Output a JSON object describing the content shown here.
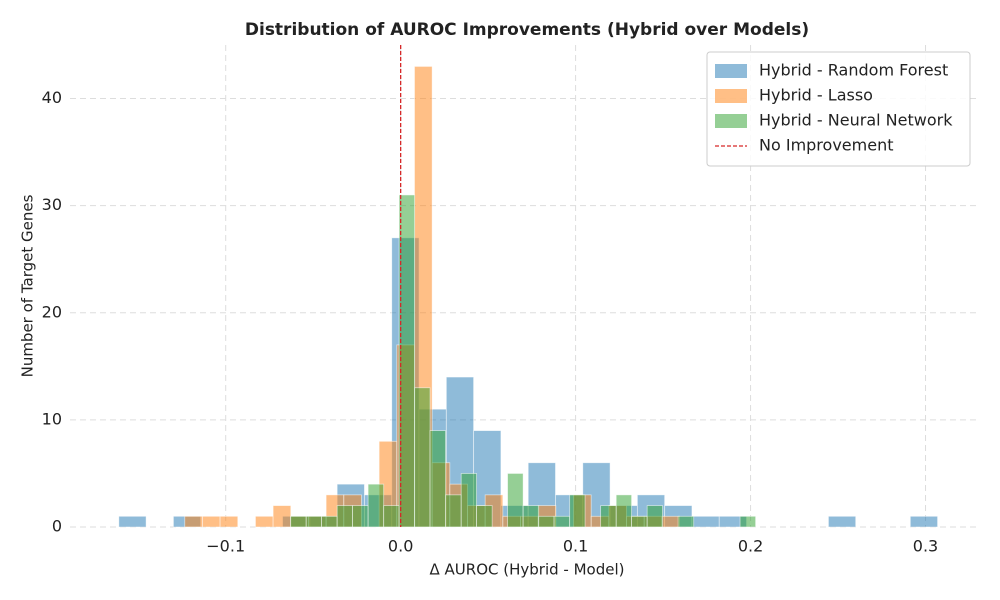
{
  "chart_data": {
    "type": "histogram",
    "title": "Distribution of AUROC Improvements (Hybrid over Models)",
    "x_label": "Δ AUROC (Hybrid - Model)",
    "y_label": "Number of Target Genes",
    "xlim": [
      -0.189,
      0.33
    ],
    "ylim": [
      0,
      45
    ],
    "xticks": [
      {
        "value": -0.1,
        "label": "−0.1"
      },
      {
        "value": 0,
        "label": "0.0"
      },
      0.1,
      0.2,
      0.3
    ],
    "yticks": [
      0,
      10,
      20,
      30,
      40
    ],
    "grid": true,
    "legend": "upper right",
    "opacity": 0.5,
    "series": [
      {
        "name": "Hybrid - Random Forest",
        "color": "#1f77b4",
        "bins": [
          -0.1611,
          -0.1455,
          -0.1299,
          -0.1143,
          -0.0987,
          -0.0831,
          -0.0675,
          -0.0519,
          -0.0363,
          -0.0207,
          -0.0051,
          0.0105,
          0.0261,
          0.0417,
          0.0573,
          0.0729,
          0.0885,
          0.1041,
          0.1197,
          0.1353,
          0.1509,
          0.1665,
          0.1821,
          0.1977,
          0.2133,
          0.2289,
          0.2445,
          0.2601,
          0.2757,
          0.2913,
          0.3069
        ],
        "values": [
          1,
          0,
          1,
          0,
          0,
          0,
          1,
          1,
          4,
          3,
          27,
          11,
          14,
          9,
          2,
          6,
          3,
          6,
          2,
          3,
          2,
          1,
          1,
          0,
          0,
          0,
          1,
          0,
          0,
          1
        ]
      },
      {
        "name": "Hybrid - Lasso",
        "color": "#ff7f0e",
        "bins": [
          -0.1234,
          -0.1133,
          -0.1032,
          -0.0931,
          -0.083,
          -0.0729,
          -0.0628,
          -0.0527,
          -0.0426,
          -0.0325,
          -0.0224,
          -0.0123,
          -0.0022,
          0.0079,
          0.018,
          0.0281,
          0.0382,
          0.0483,
          0.0584,
          0.0685,
          0.0786,
          0.0887,
          0.0988,
          0.1089,
          0.119,
          0.1291,
          0.1392,
          0.1493,
          0.1594,
          0.1695,
          0.1796
        ],
        "values": [
          1,
          1,
          1,
          0,
          1,
          2,
          1,
          1,
          3,
          3,
          0,
          8,
          17,
          43,
          6,
          4,
          2,
          3,
          1,
          1,
          2,
          0,
          3,
          1,
          2,
          1,
          1,
          1,
          0,
          0
        ]
      },
      {
        "name": "Hybrid - Neural Network",
        "color": "#2ca02c",
        "bins": [
          -0.0629,
          -0.054,
          -0.0452,
          -0.0363,
          -0.0275,
          -0.0186,
          -0.0097,
          -0.0009,
          0.008,
          0.0168,
          0.0257,
          0.0346,
          0.0434,
          0.0523,
          0.0611,
          0.07,
          0.0789,
          0.0877,
          0.0966,
          0.1054,
          0.1143,
          0.1232,
          0.132,
          0.1409,
          0.1497,
          0.1586,
          0.1675,
          0.1763,
          0.1852,
          0.194,
          0.2029
        ],
        "values": [
          1,
          1,
          1,
          2,
          2,
          4,
          2,
          31,
          13,
          9,
          3,
          5,
          2,
          0,
          5,
          2,
          1,
          1,
          3,
          0,
          2,
          3,
          1,
          2,
          0,
          1,
          0,
          0,
          0,
          1
        ]
      }
    ],
    "vline": {
      "value": 0,
      "name": "No Improvement",
      "color": "#d62728"
    }
  }
}
